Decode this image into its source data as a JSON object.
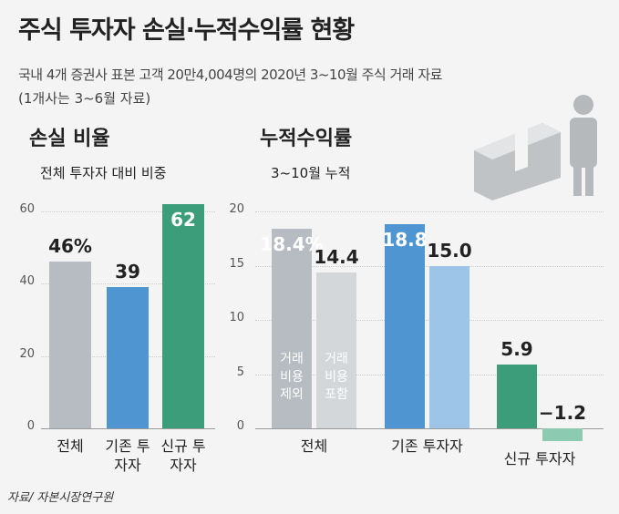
{
  "title": "주식 투자자 손실·누적수익률 현황",
  "subtitle": "국내 4개 증권사 표본 고객 20만4,004명의 2020년 3~10월 주식 거래 자료",
  "note": "(1개사는 3~6월 자료)",
  "source": "자료/ 자본시장연구원",
  "chart_data": [
    {
      "type": "bar",
      "title": "손실 비율",
      "subtitle": "전체 투자자 대비 비중",
      "categories": [
        "전체",
        "기존 투자자",
        "신규 투자자"
      ],
      "values": [
        46,
        39,
        62
      ],
      "value_labels": [
        "46%",
        "39",
        "62"
      ],
      "colors": [
        "#b6bcc1",
        "#4f95d2",
        "#3c9d7a"
      ],
      "ylim": [
        0,
        62
      ],
      "yticks": [
        0,
        20,
        40,
        60
      ],
      "grid": true
    },
    {
      "type": "grouped_bar",
      "title": "누적수익률",
      "subtitle": "3~10월 누적",
      "categories": [
        "전체",
        "기존 투자자",
        "신규 투자자"
      ],
      "series": [
        {
          "name": "거래 비용 제외",
          "colors": [
            "#b6bcc1",
            "#4f95d2",
            "#3c9d7a"
          ],
          "values": [
            18.4,
            18.8,
            5.9
          ],
          "value_labels": [
            "18.4%",
            "18.8",
            "5.9"
          ]
        },
        {
          "name": "거래 비용 포함",
          "colors": [
            "#d3d7da",
            "#9cc5e8",
            "#8ccbb2"
          ],
          "values": [
            14.4,
            15.0,
            -1.2
          ],
          "value_labels": [
            "14.4",
            "15.0",
            "−1.2"
          ]
        }
      ],
      "ylim": [
        -1.5,
        20
      ],
      "yticks": [
        0,
        5,
        10,
        15,
        20
      ],
      "grid": true
    }
  ]
}
